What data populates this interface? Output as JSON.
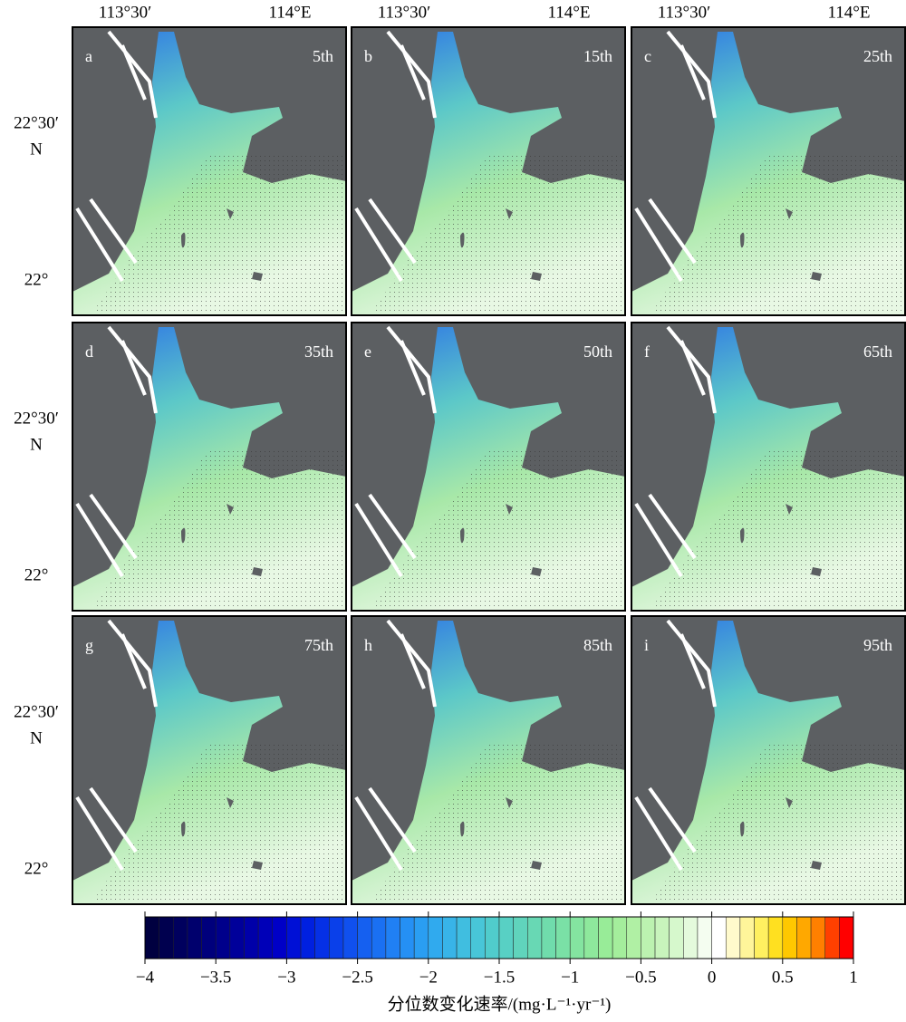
{
  "map_figure": {
    "columns": [
      {
        "lon_labels": [
          "113°30′",
          "114°E"
        ]
      },
      {
        "lon_labels": [
          "113°30′",
          "114°E"
        ]
      },
      {
        "lon_labels": [
          "113°30′",
          "114°E"
        ]
      }
    ],
    "rows": [
      {
        "lat_labels": [
          "22°30′",
          "N",
          "22°"
        ]
      },
      {
        "lat_labels": [
          "22°30′",
          "N",
          "22°"
        ]
      },
      {
        "lat_labels": [
          "22°30′",
          "N",
          "22°"
        ]
      }
    ],
    "panels": [
      {
        "letter": "a",
        "percentile": "5th"
      },
      {
        "letter": "b",
        "percentile": "15th"
      },
      {
        "letter": "c",
        "percentile": "25th"
      },
      {
        "letter": "d",
        "percentile": "35th"
      },
      {
        "letter": "e",
        "percentile": "50th"
      },
      {
        "letter": "f",
        "percentile": "65th"
      },
      {
        "letter": "g",
        "percentile": "75th"
      },
      {
        "letter": "h",
        "percentile": "85th"
      },
      {
        "letter": "i",
        "percentile": "95th"
      }
    ],
    "colorbar": {
      "lim": [
        -4,
        1
      ],
      "ticks": [
        {
          "value": -4,
          "label": "−4"
        },
        {
          "value": -3.5,
          "label": "−3.5"
        },
        {
          "value": -3,
          "label": "−3"
        },
        {
          "value": -2.5,
          "label": "−2.5"
        },
        {
          "value": -2,
          "label": "−2"
        },
        {
          "value": -1.5,
          "label": "−1.5"
        },
        {
          "value": -1,
          "label": "−1"
        },
        {
          "value": -0.5,
          "label": "−0.5"
        },
        0,
        0.5,
        1
      ],
      "label": "分位数变化速率/(mg·L⁻¹·yr⁻¹)",
      "colors": [
        "#000040",
        "#00004f",
        "#00005e",
        "#00006d",
        "#00007c",
        "#00008b",
        "#00009a",
        "#0000a9",
        "#0000b8",
        "#0000c7",
        "#0010d6",
        "#0020e0",
        "#0530e6",
        "#0a40ea",
        "#1050ee",
        "#1560f0",
        "#1a70f2",
        "#2080f4",
        "#2590f4",
        "#2a9ef2",
        "#30aaee",
        "#38b4e8",
        "#40bee0",
        "#48c6d8",
        "#50cccc",
        "#58d0c4",
        "#60d4bc",
        "#68d8b4",
        "#70dcac",
        "#7ae0a6",
        "#84e4a0",
        "#8ee89c",
        "#98ec98",
        "#a4ee9c",
        "#b0f0a4",
        "#bcf2b0",
        "#c8f4bc",
        "#d6f8cc",
        "#e4fadc",
        "#f4fdf0",
        "#ffffff",
        "#fffacc",
        "#fff59a",
        "#fff060",
        "#ffe020",
        "#ffc800",
        "#ffa800",
        "#ff8000",
        "#ff4000",
        "#ff0000"
      ]
    }
  }
}
